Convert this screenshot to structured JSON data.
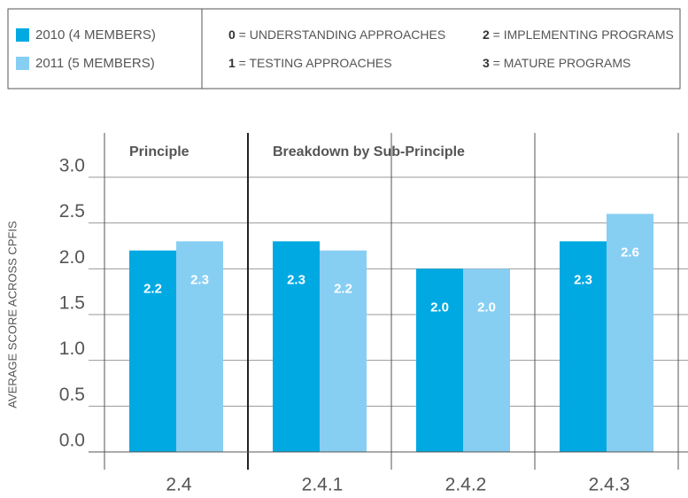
{
  "chart_data": {
    "type": "bar",
    "y_label": "AVERAGE SCORE ACROSS CPFIS",
    "group_labels": [
      "Principle",
      "Breakdown by Sub-Principle"
    ],
    "categories": [
      "2.4",
      "2.4.1",
      "2.4.2",
      "2.4.3"
    ],
    "series": [
      {
        "name": "2010 (4 MEMBERS)",
        "color": "#00a9e2",
        "values": [
          2.2,
          2.3,
          2.0,
          2.3
        ],
        "value_labels": [
          "2.2",
          "2.3",
          "2.0",
          "2.3"
        ]
      },
      {
        "name": "2011 (5 MEMBERS)",
        "color": "#87cef3",
        "values": [
          2.3,
          2.2,
          2.0,
          2.6
        ],
        "value_labels": [
          "2.3",
          "2.2",
          "2.0",
          "2.6"
        ]
      }
    ],
    "scale_key": [
      {
        "score": 0,
        "label": "= UNDERSTANDING APPROACHES"
      },
      {
        "score": 1,
        "label": "= TESTING APPROACHES"
      },
      {
        "score": 2,
        "label": "= IMPLEMENTING PROGRAMS"
      },
      {
        "score": 3,
        "label": "= MATURE PROGRAMS"
      }
    ],
    "ylim": [
      0,
      3
    ],
    "yticks": [
      {
        "value": 0,
        "label": "0.0"
      },
      0.5,
      {
        "value": 1,
        "label": "1.0"
      },
      1.5,
      {
        "value": 2,
        "label": "2.0"
      },
      2.5,
      {
        "value": 3,
        "label": "3.0"
      }
    ],
    "grid": true
  }
}
